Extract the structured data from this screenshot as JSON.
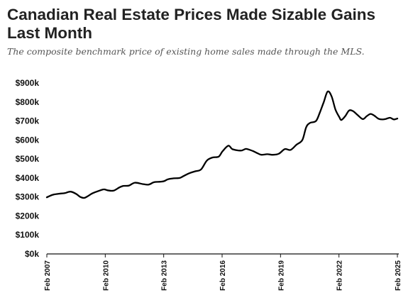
{
  "chart_data": {
    "type": "line",
    "title": "Canadian Real Estate Prices Made Sizable Gains Last Month",
    "subtitle": "The composite benchmark price of existing home sales made through the MLS.",
    "y_tick_labels": [
      "$0k",
      "$100k",
      "$200k",
      "$300k",
      "$400k",
      "$500k",
      "$600k",
      "$700k",
      "$800k",
      "$900k"
    ],
    "x_tick_labels": [
      "Feb 2007",
      "Feb 2010",
      "Feb 2013",
      "Feb 2016",
      "Feb 2019",
      "Feb 2022",
      "Feb 2025"
    ],
    "ylim": [
      0,
      900
    ],
    "xlim": [
      2007.08,
      2025.08
    ],
    "grid": false,
    "series": [
      {
        "color": "#000000",
        "x": [
          2007.08,
          2007.4,
          2007.8,
          2008.0,
          2008.3,
          2008.6,
          2008.8,
          2009.0,
          2009.2,
          2009.4,
          2009.7,
          2010.0,
          2010.2,
          2010.5,
          2010.8,
          2011.0,
          2011.3,
          2011.6,
          2012.0,
          2012.3,
          2012.6,
          2012.9,
          2013.1,
          2013.3,
          2013.6,
          2013.9,
          2014.1,
          2014.4,
          2014.7,
          2015.0,
          2015.3,
          2015.6,
          2015.9,
          2016.1,
          2016.4,
          2016.6,
          2016.9,
          2017.1,
          2017.3,
          2017.5,
          2017.7,
          2017.9,
          2018.1,
          2018.4,
          2018.7,
          2019.0,
          2019.3,
          2019.6,
          2019.9,
          2020.2,
          2020.4,
          2020.6,
          2020.9,
          2021.1,
          2021.3,
          2021.5,
          2021.7,
          2021.9,
          2022.1,
          2022.2,
          2022.4,
          2022.6,
          2022.8,
          2023.0,
          2023.3,
          2023.5,
          2023.7,
          2023.9,
          2024.1,
          2024.3,
          2024.5,
          2024.7,
          2024.9,
          2025.08
        ],
        "values": [
          298,
          312,
          318,
          320,
          328,
          315,
          300,
          295,
          305,
          318,
          330,
          340,
          335,
          333,
          350,
          358,
          360,
          375,
          368,
          365,
          378,
          380,
          383,
          393,
          398,
          400,
          410,
          425,
          435,
          445,
          492,
          508,
          512,
          540,
          570,
          552,
          545,
          545,
          553,
          548,
          540,
          530,
          522,
          525,
          522,
          528,
          552,
          548,
          575,
          600,
          668,
          690,
          700,
          745,
          800,
          855,
          830,
          760,
          720,
          705,
          725,
          755,
          752,
          735,
          710,
          725,
          737,
          728,
          712,
          708,
          711,
          717,
          708,
          713
        ]
      }
    ]
  }
}
